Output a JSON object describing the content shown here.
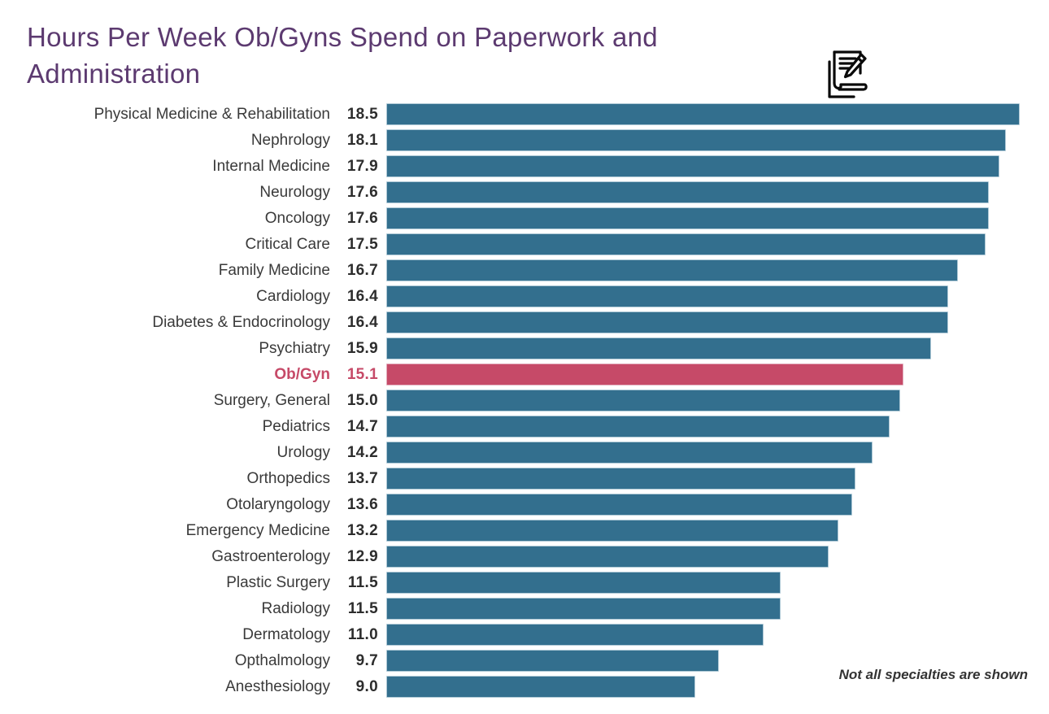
{
  "header": {
    "title_line1": "Hours Per Week Ob/Gyns Spend on Paperwork and",
    "title_line2": "Administration",
    "title_color": "#5C3A70",
    "icon": "paperwork-pencil-icon"
  },
  "chart_data": {
    "type": "bar",
    "orientation": "horizontal",
    "title": "Hours Per Week Ob/Gyns Spend on Paperwork and Administration",
    "categories": [
      "Physical Medicine & Rehabilitation",
      "Nephrology",
      "Internal Medicine",
      "Neurology",
      "Oncology",
      "Critical Care",
      "Family Medicine",
      "Cardiology",
      "Diabetes & Endocrinology",
      "Psychiatry",
      "Ob/Gyn",
      "Surgery, General",
      "Pediatrics",
      "Urology",
      "Orthopedics",
      "Otolaryngology",
      "Emergency Medicine",
      "Gastroenterology",
      "Plastic Surgery",
      "Radiology",
      "Dermatology",
      "Opthalmology",
      "Anesthesiology"
    ],
    "values": [
      18.5,
      18.1,
      17.9,
      17.6,
      17.6,
      17.5,
      16.7,
      16.4,
      16.4,
      15.9,
      15.1,
      15.0,
      14.7,
      14.2,
      13.7,
      13.6,
      13.2,
      12.9,
      11.5,
      11.5,
      11.0,
      9.7,
      9.0
    ],
    "highlight_category": "Ob/Gyn",
    "value_labels_shown": true,
    "axis_shown": false,
    "grid": false,
    "legend": false,
    "xlim": [
      0,
      18.5
    ],
    "note": "Not all specialties are shown",
    "colors": {
      "bar": "#336F8E",
      "bar_edge": "#AFC9D6",
      "highlight": "#C64A68",
      "highlight_edge": "#E2ADBC",
      "label_text": "#3A3A3A",
      "value_text": "#2D2D2D",
      "title_text": "#5C3A70"
    }
  }
}
